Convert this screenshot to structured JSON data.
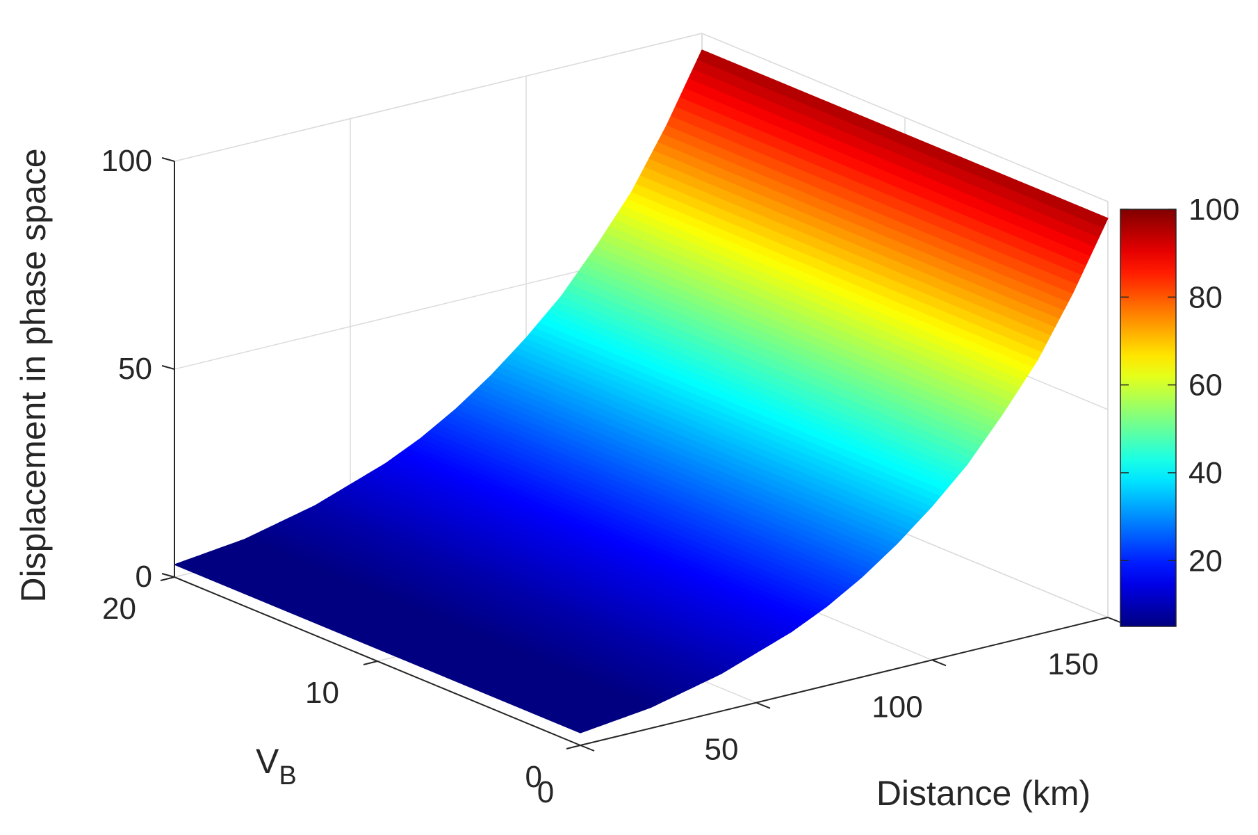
{
  "chart_data": {
    "type": "surface",
    "title": "",
    "xlabel": "Distance (km)",
    "ylabel_main": "V",
    "ylabel_sub": "B",
    "zlabel": "Displacement in phase space",
    "xlim": [
      0,
      150
    ],
    "ylim": [
      0,
      20
    ],
    "zlim": [
      0,
      100
    ],
    "x_ticks": [
      {
        "value": 0,
        "label": "0"
      },
      {
        "value": 50,
        "label": "50"
      },
      {
        "value": 100,
        "label": "100"
      },
      {
        "value": 150,
        "label": "150"
      }
    ],
    "y_ticks": [
      {
        "value": 0,
        "label": "0"
      },
      {
        "value": 10,
        "label": "10"
      },
      {
        "value": 20,
        "label": "20"
      }
    ],
    "z_ticks": [
      {
        "value": 0,
        "label": "0"
      },
      {
        "value": 50,
        "label": "50"
      },
      {
        "value": 100,
        "label": "100"
      }
    ],
    "surface_profile": {
      "x": [
        0,
        10,
        20,
        30,
        40,
        50,
        60,
        70,
        80,
        90,
        100,
        110,
        120,
        130,
        140,
        150
      ],
      "z": [
        3,
        4,
        5,
        7,
        9,
        12,
        15,
        19,
        24,
        30,
        37,
        45,
        55,
        66,
        80,
        96
      ]
    },
    "surface_variation_with_y": "constant",
    "colormap": "jet",
    "colorbar": {
      "clim": [
        5,
        100
      ],
      "ticks": [
        {
          "value": 20,
          "label": "20"
        },
        {
          "value": 40,
          "label": "40"
        },
        {
          "value": 60,
          "label": "60"
        },
        {
          "value": 80,
          "label": "80"
        },
        {
          "value": 100,
          "label": "100"
        }
      ],
      "placement": "right"
    },
    "grid": true
  }
}
